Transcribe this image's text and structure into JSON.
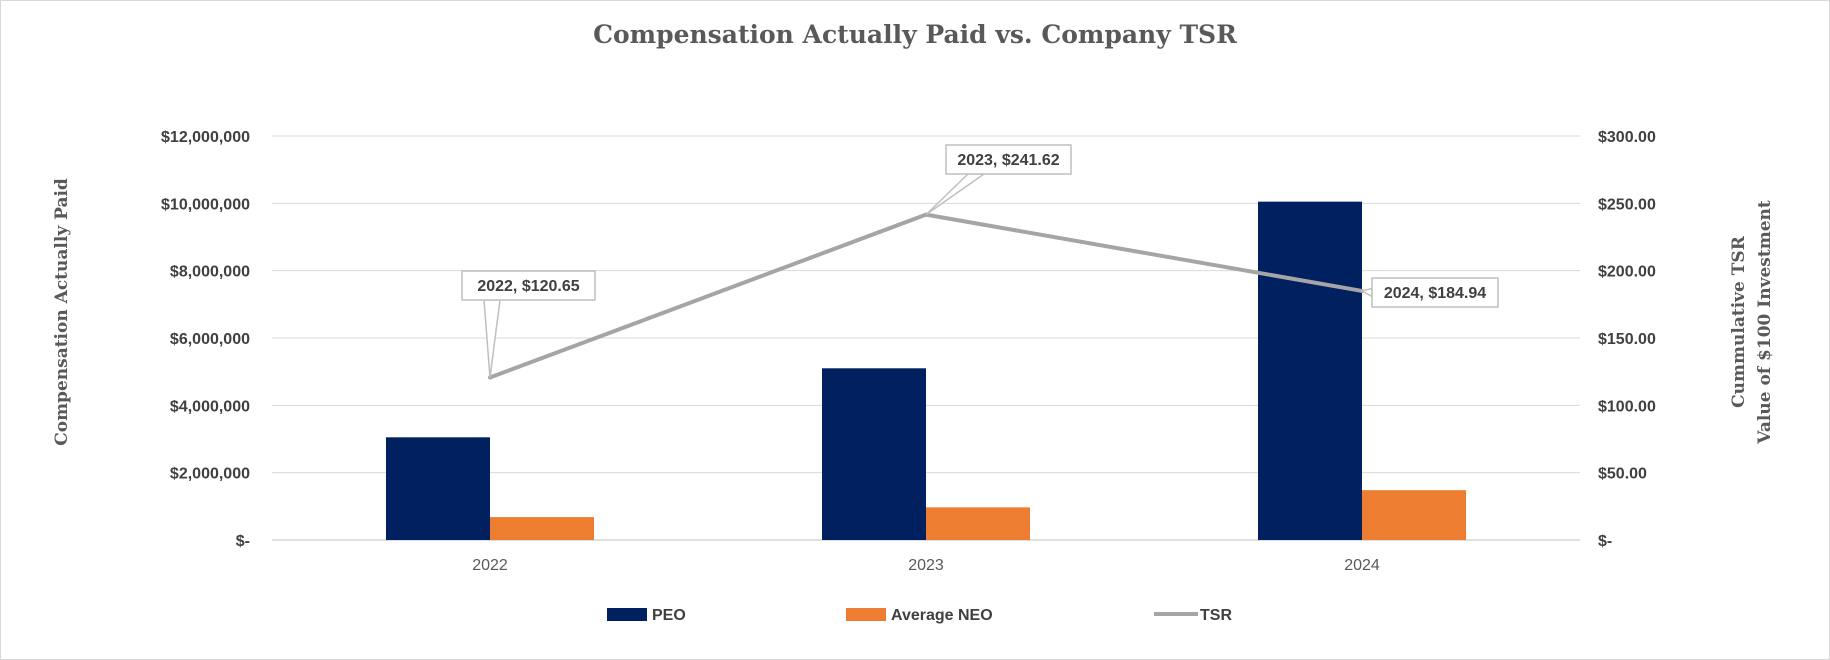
{
  "chart_data": {
    "type": "bar",
    "title": "Compensation Actually Paid vs. Company TSR",
    "xlabel": "",
    "ylabel": "Compensation Actually Paid",
    "y2label": [
      "Cummulative TSR",
      "Value of $100 Investment"
    ],
    "categories": [
      "2022",
      "2023",
      "2024"
    ],
    "ylim": [
      0,
      12000000
    ],
    "y2lim": [
      0,
      300
    ],
    "yticks": [
      "$-",
      "$2,000,000",
      "$4,000,000",
      "$6,000,000",
      "$8,000,000",
      "$10,000,000",
      "$12,000,000"
    ],
    "y2ticks": [
      "$-",
      "$50.00",
      "$100.00",
      "$150.00",
      "$200.00",
      "$250.00",
      "$300.00"
    ],
    "series": [
      {
        "name": "PEO",
        "type": "bar",
        "axis": "left",
        "color": "#002060",
        "values": [
          3050000,
          5100000,
          10050000
        ]
      },
      {
        "name": "Average NEO",
        "type": "bar",
        "axis": "left",
        "color": "#ED7D31",
        "values": [
          680000,
          970000,
          1480000
        ]
      },
      {
        "name": "TSR",
        "type": "line",
        "axis": "right",
        "color": "#A5A5A5",
        "values": [
          120.65,
          241.62,
          184.94
        ]
      }
    ],
    "data_labels": [
      "2022, $120.65",
      "2023, $241.62",
      "2024, $184.94"
    ],
    "legend": "bottom",
    "grid": true
  }
}
